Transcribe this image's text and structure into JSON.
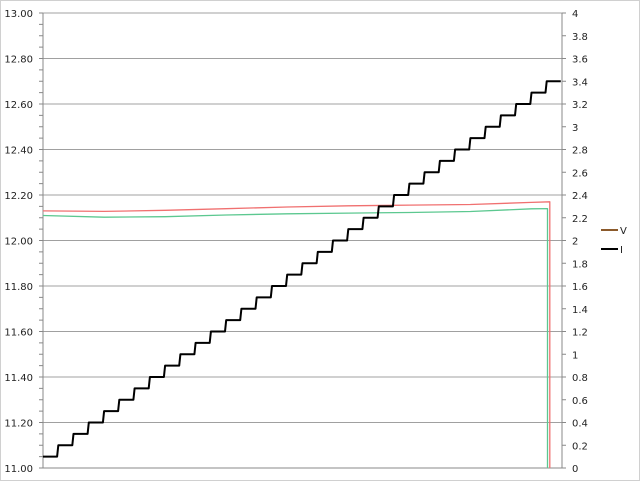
{
  "chart_data": {
    "type": "line",
    "title": "",
    "xlabel": "",
    "ylabel": "",
    "y_left": {
      "range": [
        11.0,
        13.0
      ],
      "major_step": 0.2,
      "minor_step": 0.05,
      "tick_labels": [
        "11.00",
        "11.20",
        "11.40",
        "11.60",
        "11.80",
        "12.00",
        "12.20",
        "12.40",
        "12.60",
        "12.80",
        "13.00"
      ]
    },
    "y_right": {
      "range": [
        0,
        4
      ],
      "major_step": 0.2,
      "tick_labels": [
        "0",
        "0.2",
        "0.4",
        "0.6",
        "0.8",
        "1",
        "1.2",
        "1.4",
        "1.6",
        "1.8",
        "2",
        "2.2",
        "2.4",
        "2.6",
        "2.8",
        "3",
        "3.2",
        "3.4",
        "3.6",
        "3.8",
        "4"
      ]
    },
    "x_range": [
      0,
      34
    ],
    "grid": true,
    "legend": {
      "placement": "right",
      "entries": [
        {
          "label": "V",
          "color": "#8B5A2B"
        },
        {
          "label": "I",
          "color": "#000000"
        }
      ]
    },
    "series": [
      {
        "axis": "left",
        "color": "#F07070",
        "x": [
          0,
          4,
          8,
          12,
          16,
          20,
          24,
          28,
          32,
          33.2,
          33.2
        ],
        "y": [
          12.13,
          12.13,
          12.135,
          12.14,
          12.145,
          12.15,
          12.155,
          12.16,
          12.17,
          12.17,
          11.0
        ]
      },
      {
        "axis": "left",
        "color": "#5CC890",
        "x": [
          0,
          4,
          8,
          12,
          16,
          20,
          24,
          28,
          32,
          33.05,
          33.05
        ],
        "y": [
          12.11,
          12.105,
          12.105,
          12.11,
          12.115,
          12.12,
          12.125,
          12.13,
          12.14,
          12.14,
          11.0
        ]
      },
      {
        "name": "I",
        "axis": "right",
        "color": "#000000",
        "type": "step",
        "levels": [
          0.1,
          0.2,
          0.3,
          0.4,
          0.5,
          0.6,
          0.7,
          0.8,
          0.9,
          1.0,
          1.1,
          1.2,
          1.3,
          1.4,
          1.5,
          1.6,
          1.7,
          1.8,
          1.9,
          2.0,
          2.1,
          2.2,
          2.3,
          2.4,
          2.5,
          2.6,
          2.7,
          2.8,
          2.9,
          3.0,
          3.1,
          3.2,
          3.3,
          3.4
        ]
      }
    ]
  }
}
